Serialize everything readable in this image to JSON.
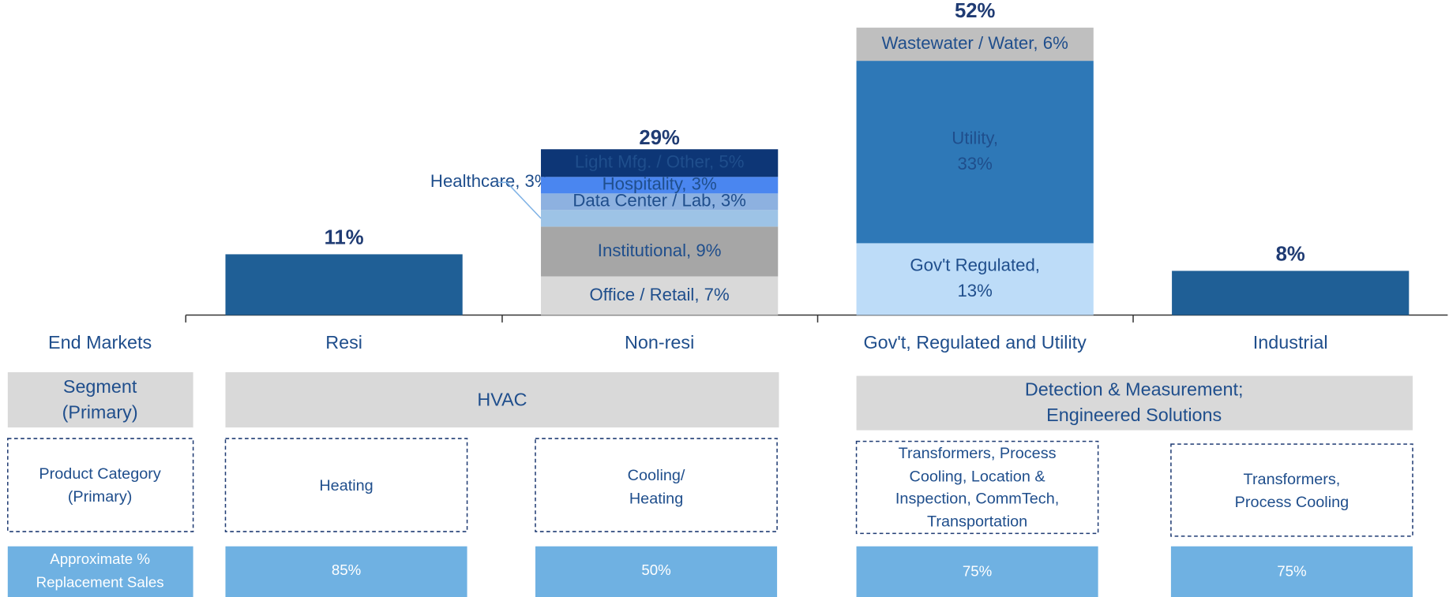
{
  "chart_data": {
    "type": "stacked_bar",
    "row_label": "End Markets",
    "categories": [
      "Resi",
      "Non-resi",
      "Gov't, Regulated and Utility",
      "Industrial"
    ],
    "totals": [
      11,
      29,
      52,
      8
    ],
    "value_labels": [
      "11%",
      "29%",
      "52%",
      "8%"
    ],
    "stacks": [
      {
        "segments": [
          {
            "value": 11,
            "color": "#1f5f96"
          }
        ]
      },
      {
        "segments": [
          {
            "value": 7,
            "color": "#d9d9d9",
            "text_color": "#1a1a1a",
            "label": [
              "Office / Retail, 7%"
            ]
          },
          {
            "value": 9,
            "color": "#a6a6a6",
            "text_color": "#1a1a1a",
            "label": [
              "Institutional, 9%"
            ]
          },
          {
            "value": 3,
            "color": "#9dc3e6",
            "text_color": "#1a1a1a",
            "callout": "Healthcare, 3%"
          },
          {
            "value": 3,
            "color": "#8db1e0",
            "text_color": "#1a1a1a",
            "label": [
              "Data Center / Lab, 3%"
            ]
          },
          {
            "value": 3,
            "color": "#4a86f0",
            "text_color": "#ffffff",
            "label": [
              "Hospitality, 3%"
            ]
          },
          {
            "value": 5,
            "color": "#0d3676",
            "text_color": "#ffffff",
            "label": [
              "Light Mfg. / Other, 5%"
            ]
          }
        ]
      },
      {
        "segments": [
          {
            "value": 13,
            "color": "#bddcf8",
            "text_color": "#1f4e8c",
            "label": [
              "Gov't Regulated,",
              "13%"
            ]
          },
          {
            "value": 33,
            "color": "#2e78b7",
            "text_color": "#ffffff",
            "label": [
              "Utility,",
              "33%"
            ]
          },
          {
            "value": 6,
            "color": "#bfbfbf",
            "text_color": "#1a1a1a",
            "label": [
              "Wastewater / Water, 6%"
            ]
          }
        ]
      },
      {
        "segments": [
          {
            "value": 8,
            "color": "#1f5f96"
          }
        ]
      }
    ]
  },
  "table": {
    "segment_row": {
      "label": [
        "Segment",
        "(Primary)"
      ],
      "cells": [
        [
          "HVAC"
        ],
        [
          "Detection & Measurement;",
          "Engineered Solutions"
        ]
      ]
    },
    "product_row": {
      "label": [
        "Product Category",
        "(Primary)"
      ],
      "cells": [
        [
          "Heating"
        ],
        [
          "Cooling/",
          "Heating"
        ],
        [
          "Transformers, Process",
          "Cooling, Location &",
          "Inspection, CommTech,",
          "Transportation"
        ],
        [
          "Transformers,",
          "Process Cooling"
        ]
      ]
    },
    "replacement_row": {
      "label": [
        "Approximate %",
        "Replacement Sales"
      ],
      "cells": [
        "85%",
        "50%",
        "75%",
        "75%"
      ]
    }
  }
}
